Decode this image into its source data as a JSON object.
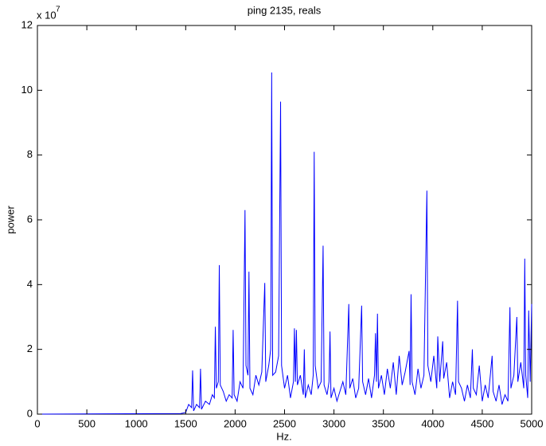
{
  "chart_data": {
    "type": "line",
    "title": "ping 2135, reals",
    "xlabel": "Hz.",
    "ylabel": "power",
    "y_scale_base": "x 10",
    "y_scale_exponent": "7",
    "x": [
      0,
      1450,
      1500,
      1530,
      1560,
      1570,
      1580,
      1610,
      1640,
      1650,
      1660,
      1700,
      1740,
      1770,
      1790,
      1800,
      1810,
      1830,
      1840,
      1850,
      1880,
      1910,
      1940,
      1970,
      1980,
      1990,
      2020,
      2050,
      2080,
      2100,
      2110,
      2130,
      2140,
      2150,
      2180,
      2210,
      2240,
      2270,
      2300,
      2310,
      2340,
      2360,
      2370,
      2380,
      2410,
      2440,
      2460,
      2470,
      2500,
      2530,
      2560,
      2590,
      2600,
      2610,
      2620,
      2630,
      2660,
      2690,
      2700,
      2710,
      2740,
      2770,
      2790,
      2800,
      2810,
      2840,
      2870,
      2890,
      2900,
      2930,
      2950,
      2960,
      2970,
      3000,
      3030,
      3060,
      3090,
      3120,
      3150,
      3160,
      3190,
      3220,
      3250,
      3280,
      3290,
      3320,
      3350,
      3380,
      3410,
      3420,
      3430,
      3440,
      3450,
      3480,
      3510,
      3540,
      3570,
      3600,
      3630,
      3660,
      3690,
      3720,
      3760,
      3770,
      3780,
      3790,
      3820,
      3850,
      3880,
      3910,
      3940,
      3950,
      3980,
      4010,
      4040,
      4050,
      4070,
      4100,
      4110,
      4140,
      4170,
      4200,
      4230,
      4250,
      4260,
      4290,
      4320,
      4350,
      4380,
      4400,
      4410,
      4440,
      4470,
      4500,
      4530,
      4560,
      4600,
      4610,
      4640,
      4670,
      4700,
      4730,
      4760,
      4780,
      4790,
      4820,
      4850,
      4860,
      4890,
      4920,
      4930,
      4940,
      4960,
      4970,
      4985,
      5000
    ],
    "series": [
      {
        "color": "#0000ff",
        "values": [
          0,
          0.02,
          0.05,
          0.3,
          0.2,
          1.35,
          0.1,
          0.3,
          0.2,
          1.4,
          0.15,
          0.4,
          0.3,
          0.6,
          0.5,
          2.7,
          0.8,
          1.0,
          4.6,
          0.9,
          0.7,
          0.4,
          0.6,
          0.5,
          2.6,
          0.6,
          0.4,
          1.0,
          0.8,
          6.3,
          1.5,
          1.2,
          4.4,
          0.8,
          0.6,
          1.2,
          0.9,
          1.3,
          4.05,
          1.0,
          1.5,
          2.0,
          10.55,
          1.2,
          1.3,
          1.8,
          9.65,
          1.5,
          0.8,
          1.2,
          0.5,
          1.0,
          2.65,
          1.0,
          2.6,
          0.9,
          1.2,
          0.6,
          2.0,
          0.5,
          0.9,
          0.6,
          1.2,
          8.1,
          1.5,
          0.8,
          1.0,
          5.2,
          0.9,
          0.6,
          1.0,
          2.55,
          0.5,
          0.8,
          0.4,
          0.7,
          1.0,
          0.6,
          3.4,
          0.8,
          1.1,
          0.5,
          0.8,
          3.35,
          1.0,
          0.6,
          1.1,
          0.5,
          1.2,
          2.5,
          1.0,
          3.1,
          0.8,
          1.2,
          0.6,
          1.4,
          0.8,
          1.6,
          0.6,
          1.8,
          0.9,
          1.3,
          1.95,
          0.9,
          3.7,
          1.0,
          0.6,
          1.4,
          0.8,
          1.2,
          6.9,
          1.5,
          1.0,
          1.8,
          0.8,
          2.4,
          1.0,
          2.25,
          1.1,
          1.6,
          0.5,
          1.0,
          0.6,
          3.5,
          1.0,
          0.8,
          0.4,
          0.9,
          0.5,
          2.0,
          0.8,
          0.6,
          1.5,
          0.4,
          0.9,
          0.5,
          1.8,
          0.7,
          0.4,
          0.9,
          0.3,
          0.6,
          0.4,
          3.3,
          0.8,
          1.2,
          3.0,
          1.0,
          1.6,
          0.8,
          4.8,
          1.2,
          0.5,
          3.2,
          1.0,
          3.4
        ]
      }
    ],
    "xlim": [
      0,
      5000
    ],
    "xticks": [
      0,
      500,
      1000,
      1500,
      2000,
      2500,
      3000,
      3500,
      4000,
      4500,
      5000
    ],
    "ylim": [
      0,
      12
    ],
    "yticks": [
      0,
      2,
      4,
      6,
      8,
      10,
      12
    ],
    "grid": false
  }
}
